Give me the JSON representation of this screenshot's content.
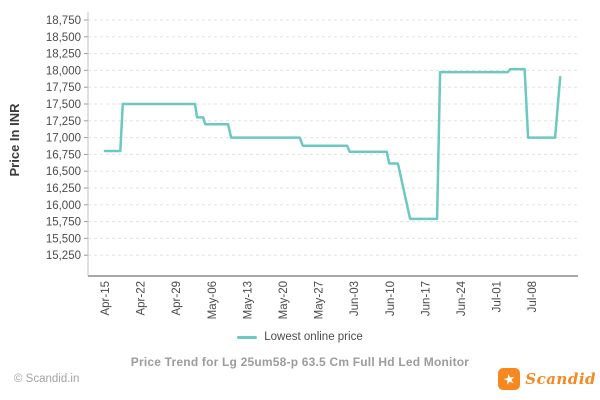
{
  "title": "Price Trend for Lg 25um58-p 63.5 Cm Full Hd Led Monitor",
  "y_axis": {
    "title": "Price In INR"
  },
  "legend": {
    "label": "Lowest online price"
  },
  "footer": {
    "copyright": "© Scandid.in",
    "brand_name": "Scandid"
  },
  "colors": {
    "line": "#6cc8c1",
    "brand_orange": "#f6881f",
    "title_gray": "#9c9c9c",
    "axis_text": "#4b4b4b",
    "axis_title_text": "#3c3c3c",
    "gridline": "#e2e2e2",
    "x_axis_line": "#a8a8a8",
    "y_axis_line": "#c2c2c2"
  },
  "chart_data": {
    "type": "line",
    "title": "Price Trend for Lg 25um58-p 63.5 Cm Full Hd Led Monitor",
    "xlabel": "",
    "ylabel": "Price In INR",
    "grid": "horizontal-dashed",
    "legend_position": "bottom",
    "series_name": "Lowest online price",
    "x_tick_labels": [
      "Apr-15",
      "Apr-22",
      "Apr-29",
      "May-06",
      "May-13",
      "May-20",
      "May-27",
      "Jun-03",
      "Jun-10",
      "Jun-17",
      "Jun-24",
      "Jul-01",
      "Jul-08"
    ],
    "x_tick_interval_days": 7,
    "x_unit": "day = days after Apr-15",
    "y_tick_values": [
      18750,
      18500,
      18250,
      18000,
      17750,
      17500,
      17250,
      17000,
      16750,
      16500,
      16250,
      16000,
      15750,
      15500,
      15250
    ],
    "y_tick_labels": [
      "18,750",
      "18,500",
      "18,250",
      "18,000",
      "17,750",
      "17,500",
      "17,250",
      "17,000",
      "16,750",
      "16,500",
      "16,250",
      "16,000",
      "15,750",
      "15,500",
      "15,250"
    ],
    "ylim": [
      15100,
      18850
    ],
    "points": [
      {
        "day": 0,
        "price": 16800
      },
      {
        "day": 3,
        "price": 16800
      },
      {
        "day": 3.5,
        "price": 17500
      },
      {
        "day": 17.7,
        "price": 17500
      },
      {
        "day": 18.1,
        "price": 17300
      },
      {
        "day": 19.3,
        "price": 17300
      },
      {
        "day": 19.7,
        "price": 17200
      },
      {
        "day": 24.2,
        "price": 17200
      },
      {
        "day": 24.8,
        "price": 17000
      },
      {
        "day": 38.3,
        "price": 17000
      },
      {
        "day": 38.9,
        "price": 16880
      },
      {
        "day": 47.6,
        "price": 16880
      },
      {
        "day": 48.1,
        "price": 16790
      },
      {
        "day": 55.4,
        "price": 16790
      },
      {
        "day": 55.9,
        "price": 16615
      },
      {
        "day": 57.6,
        "price": 16615
      },
      {
        "day": 60,
        "price": 15790
      },
      {
        "day": 65.3,
        "price": 15790
      },
      {
        "day": 65.9,
        "price": 17975
      },
      {
        "day": 79.2,
        "price": 17975
      },
      {
        "day": 79.7,
        "price": 18020
      },
      {
        "day": 82.5,
        "price": 18020
      },
      {
        "day": 83.2,
        "price": 17000
      },
      {
        "day": 88.5,
        "price": 17000
      },
      {
        "day": 89.5,
        "price": 17900
      }
    ]
  }
}
